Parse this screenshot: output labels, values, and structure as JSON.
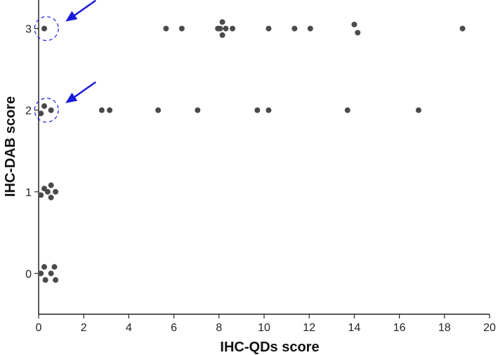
{
  "chart_data": {
    "type": "scatter",
    "title": "",
    "xlabel": "IHC-QDs score",
    "ylabel": "IHC-DAB score",
    "xlim": [
      0,
      20
    ],
    "ylim": [
      -0.5,
      3.35
    ],
    "xticks": [
      "0",
      "2",
      "4",
      "6",
      "8",
      "10",
      "12",
      "14",
      "16",
      "18",
      "20"
    ],
    "yticks": [
      "0",
      "1",
      "2",
      "3"
    ],
    "grid": false,
    "point_color": "#4a4a4a",
    "annotation_color": "#1a1adb",
    "series": [
      {
        "points": [
          {
            "x": 0.25,
            "y": 3.0
          },
          {
            "x": 5.65,
            "y": 3.0
          },
          {
            "x": 6.35,
            "y": 3.0
          },
          {
            "x": 7.95,
            "y": 3.0
          },
          {
            "x": 8.05,
            "y": 3.0
          },
          {
            "x": 8.15,
            "y": 3.08
          },
          {
            "x": 8.15,
            "y": 2.92
          },
          {
            "x": 8.3,
            "y": 3.0
          },
          {
            "x": 8.6,
            "y": 3.0
          },
          {
            "x": 10.2,
            "y": 3.0
          },
          {
            "x": 11.35,
            "y": 3.0
          },
          {
            "x": 12.05,
            "y": 3.0
          },
          {
            "x": 14.0,
            "y": 3.05
          },
          {
            "x": 14.15,
            "y": 2.95
          },
          {
            "x": 18.8,
            "y": 3.0
          },
          {
            "x": 0.1,
            "y": 1.96
          },
          {
            "x": 0.25,
            "y": 2.05
          },
          {
            "x": 0.55,
            "y": 2.0
          },
          {
            "x": 2.8,
            "y": 2.0
          },
          {
            "x": 3.15,
            "y": 2.0
          },
          {
            "x": 5.3,
            "y": 2.0
          },
          {
            "x": 7.05,
            "y": 2.0
          },
          {
            "x": 9.7,
            "y": 2.0
          },
          {
            "x": 10.2,
            "y": 2.0
          },
          {
            "x": 13.7,
            "y": 2.0
          },
          {
            "x": 16.85,
            "y": 2.0
          },
          {
            "x": 0.1,
            "y": 0.96
          },
          {
            "x": 0.25,
            "y": 1.04
          },
          {
            "x": 0.4,
            "y": 1.0
          },
          {
            "x": 0.55,
            "y": 1.08
          },
          {
            "x": 0.55,
            "y": 0.93
          },
          {
            "x": 0.75,
            "y": 1.0
          },
          {
            "x": 0.1,
            "y": 0.0
          },
          {
            "x": 0.25,
            "y": 0.08
          },
          {
            "x": 0.3,
            "y": -0.08
          },
          {
            "x": 0.55,
            "y": 0.0
          },
          {
            "x": 0.7,
            "y": 0.08
          },
          {
            "x": 0.75,
            "y": -0.08
          }
        ]
      }
    ],
    "annotations": [
      {
        "type": "dashed-circle",
        "x": 0.35,
        "y": 3.0
      },
      {
        "type": "arrow",
        "x": 0.35,
        "y": 3.0
      },
      {
        "type": "dashed-circle",
        "x": 0.35,
        "y": 2.0
      },
      {
        "type": "arrow",
        "x": 0.35,
        "y": 2.0
      }
    ]
  }
}
